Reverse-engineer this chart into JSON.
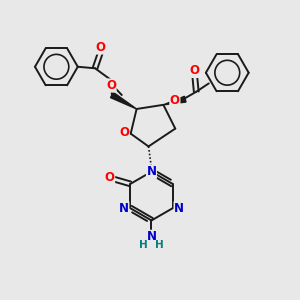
{
  "background_color": "#e8e8e8",
  "bond_color": "#1a1a1a",
  "oxygen_color": "#ff0000",
  "nitrogen_color": "#0000cc",
  "nh2_color": "#008080",
  "figsize": [
    3.0,
    3.0
  ],
  "dpi": 100,
  "xlim": [
    0,
    10
  ],
  "ylim": [
    0,
    10
  ]
}
